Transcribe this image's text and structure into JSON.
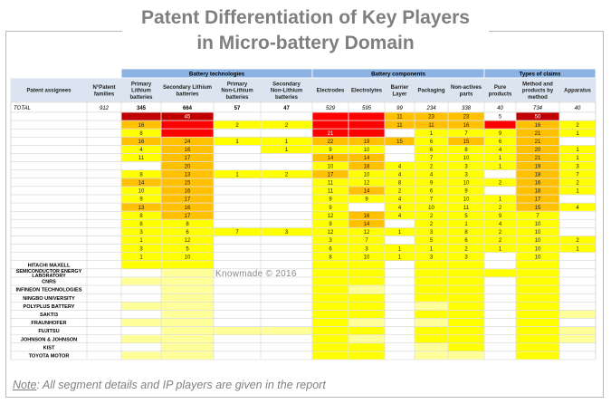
{
  "page": {
    "title_line1": "Patent Differentiation of Key Players",
    "title_line2": "in Micro-battery Domain",
    "watermark": "Knowmade  © 2016",
    "note_label": "Note",
    "note_text": ": All segment details and IP players are given in the report"
  },
  "colors": {
    "header_group": "#8db3e2",
    "header_col": "#dbe5f1",
    "darkred": "#c00000",
    "red": "#ff0000",
    "orange": "#ffc000",
    "yellow": "#ffff00",
    "lightyellow": "#ffff99",
    "grid": "#c9c9c9"
  },
  "chart_data": {
    "type": "heatmap",
    "groups": [
      {
        "label": "Battery technologies",
        "start": 2,
        "end": 5
      },
      {
        "label": "Battery components",
        "start": 6,
        "end": 10
      },
      {
        "label": "Types of claims",
        "start": 11,
        "end": 13
      }
    ],
    "columns": [
      "Patent assignees",
      "N°Patent families",
      "Primary Lithium batteries",
      "Secondary Lithium batteries",
      "Primary Non-Lithium batteries",
      "Secondary Non-Lithium batteries",
      "Electrodes",
      "Electrolytes",
      "Barrier Layer",
      "Packaging",
      "Non-actives parts",
      "Pure products",
      "Method and products by method",
      "Apparatus"
    ],
    "total": {
      "label": "TOTAL",
      "values": [
        "912",
        "345",
        "664",
        "57",
        "47",
        "529",
        "595",
        "99",
        "234",
        "338",
        "40",
        "734",
        "40"
      ]
    },
    "rows": [
      {
        "name": "",
        "values": [
          "",
          "",
          "45",
          "",
          "",
          "",
          "",
          "11",
          "23",
          "23",
          "5",
          "50",
          ""
        ],
        "levels": [
          "",
          "darkred",
          "darkred",
          "",
          "",
          "red",
          "red",
          "orange",
          "orange",
          "orange",
          "",
          "darkred",
          ""
        ]
      },
      {
        "name": "",
        "values": [
          "",
          "16",
          "",
          "2",
          "2",
          "",
          "",
          "11",
          "11",
          "16",
          "",
          "16",
          "2"
        ],
        "levels": [
          "",
          "orange",
          "red",
          "yellow",
          "yellow",
          "red",
          "red",
          "orange",
          "orange",
          "orange",
          "red",
          "orange",
          "yellow"
        ]
      },
      {
        "name": "",
        "values": [
          "",
          "8",
          "",
          "",
          "",
          "21",
          "",
          "",
          "1",
          "7",
          "9",
          "21",
          "1"
        ],
        "levels": [
          "",
          "yellow",
          "red",
          "",
          "",
          "red",
          "red",
          "",
          "yellow",
          "yellow",
          "yellow",
          "orange",
          "yellow"
        ]
      },
      {
        "name": "",
        "values": [
          "",
          "16",
          "24",
          "1",
          "1",
          "22",
          "19",
          "15",
          "6",
          "15",
          "6",
          "21",
          ""
        ],
        "levels": [
          "",
          "orange",
          "orange",
          "yellow",
          "yellow",
          "orange",
          "orange",
          "orange",
          "yellow",
          "orange",
          "yellow",
          "orange",
          ""
        ]
      },
      {
        "name": "",
        "values": [
          "",
          "4",
          "16",
          "",
          "1",
          "9",
          "10",
          "",
          "6",
          "8",
          "4",
          "20",
          "1"
        ],
        "levels": [
          "",
          "yellow",
          "orange",
          "",
          "yellow",
          "yellow",
          "yellow",
          "",
          "yellow",
          "yellow",
          "yellow",
          "orange",
          "yellow"
        ]
      },
      {
        "name": "",
        "values": [
          "",
          "11",
          "17",
          "",
          "",
          "14",
          "14",
          "",
          "7",
          "10",
          "1",
          "21",
          "1"
        ],
        "levels": [
          "",
          "yellow",
          "orange",
          "",
          "",
          "orange",
          "orange",
          "",
          "yellow",
          "yellow",
          "yellow",
          "orange",
          "yellow"
        ]
      },
      {
        "name": "",
        "values": [
          "",
          "",
          "20",
          "",
          "",
          "10",
          "18",
          "4",
          "2",
          "3",
          "1",
          "19",
          "3"
        ],
        "levels": [
          "",
          "",
          "orange",
          "",
          "",
          "yellow",
          "orange",
          "yellow",
          "yellow",
          "yellow",
          "yellow",
          "orange",
          "yellow"
        ]
      },
      {
        "name": "",
        "values": [
          "",
          "8",
          "13",
          "1",
          "2",
          "17",
          "10",
          "4",
          "4",
          "3",
          "",
          "18",
          "7"
        ],
        "levels": [
          "",
          "yellow",
          "orange",
          "yellow",
          "yellow",
          "orange",
          "yellow",
          "yellow",
          "yellow",
          "yellow",
          "",
          "orange",
          "yellow"
        ]
      },
      {
        "name": "",
        "values": [
          "",
          "14",
          "15",
          "",
          "",
          "11",
          "12",
          "8",
          "9",
          "10",
          "2",
          "16",
          "2"
        ],
        "levels": [
          "",
          "orange",
          "orange",
          "",
          "",
          "yellow",
          "yellow",
          "yellow",
          "yellow",
          "yellow",
          "yellow",
          "orange",
          "yellow"
        ]
      },
      {
        "name": "",
        "values": [
          "",
          "10",
          "16",
          "",
          "",
          "11",
          "14",
          "2",
          "6",
          "9",
          "",
          "18",
          "1"
        ],
        "levels": [
          "",
          "yellow",
          "orange",
          "",
          "",
          "yellow",
          "orange",
          "yellow",
          "yellow",
          "yellow",
          "",
          "orange",
          "yellow"
        ]
      },
      {
        "name": "",
        "values": [
          "",
          "9",
          "17",
          "",
          "",
          "9",
          "9",
          "4",
          "7",
          "10",
          "1",
          "17",
          ""
        ],
        "levels": [
          "",
          "yellow",
          "orange",
          "",
          "",
          "yellow",
          "yellow",
          "yellow",
          "yellow",
          "yellow",
          "yellow",
          "orange",
          ""
        ]
      },
      {
        "name": "",
        "values": [
          "",
          "13",
          "16",
          "",
          "",
          "9",
          "",
          "4",
          "10",
          "11",
          "2",
          "15",
          "4"
        ],
        "levels": [
          "",
          "orange",
          "orange",
          "",
          "",
          "yellow",
          "",
          "yellow",
          "yellow",
          "yellow",
          "yellow",
          "orange",
          "yellow"
        ]
      },
      {
        "name": "",
        "values": [
          "",
          "8",
          "17",
          "",
          "",
          "12",
          "16",
          "4",
          "2",
          "5",
          "9",
          "7",
          ""
        ],
        "levels": [
          "",
          "yellow",
          "orange",
          "",
          "",
          "yellow",
          "orange",
          "yellow",
          "yellow",
          "yellow",
          "yellow",
          "yellow",
          ""
        ]
      },
      {
        "name": "",
        "values": [
          "",
          "8",
          "8",
          "",
          "",
          "9",
          "14",
          "",
          "2",
          "1",
          "4",
          "10",
          ""
        ],
        "levels": [
          "",
          "yellow",
          "yellow",
          "",
          "",
          "yellow",
          "orange",
          "",
          "yellow",
          "yellow",
          "yellow",
          "yellow",
          ""
        ]
      },
      {
        "name": "",
        "values": [
          "",
          "3",
          "6",
          "7",
          "3",
          "12",
          "12",
          "1",
          "3",
          "8",
          "2",
          "10",
          ""
        ],
        "levels": [
          "",
          "yellow",
          "yellow",
          "yellow",
          "yellow",
          "yellow",
          "yellow",
          "yellow",
          "yellow",
          "yellow",
          "yellow",
          "yellow",
          ""
        ]
      },
      {
        "name": "",
        "values": [
          "",
          "1",
          "12",
          "",
          "",
          "3",
          "7",
          "",
          "5",
          "6",
          "2",
          "10",
          "2"
        ],
        "levels": [
          "",
          "yellow",
          "yellow",
          "",
          "",
          "yellow",
          "yellow",
          "",
          "yellow",
          "yellow",
          "yellow",
          "yellow",
          "yellow"
        ]
      },
      {
        "name": "",
        "values": [
          "",
          "3",
          "5",
          "",
          "",
          "6",
          "3",
          "1",
          "1",
          "2",
          "1",
          "10",
          "1"
        ],
        "levels": [
          "",
          "yellow",
          "yellow",
          "",
          "",
          "yellow",
          "yellow",
          "yellow",
          "yellow",
          "yellow",
          "yellow",
          "yellow",
          "yellow"
        ]
      },
      {
        "name": "",
        "values": [
          "",
          "1",
          "10",
          "",
          "",
          "8",
          "10",
          "1",
          "3",
          "3",
          "",
          "10",
          ""
        ],
        "levels": [
          "",
          "yellow",
          "yellow",
          "",
          "",
          "yellow",
          "yellow",
          "yellow",
          "yellow",
          "yellow",
          "",
          "yellow",
          ""
        ]
      },
      {
        "name": "HITACHI MAXELL",
        "values": [
          "",
          "",
          "",
          "",
          "",
          "",
          "",
          "",
          "",
          "",
          "",
          "",
          ""
        ],
        "levels": [
          "",
          "yellow",
          "yellow",
          "",
          "",
          "yellow",
          "yellow",
          "",
          "yellow",
          "yellow",
          "",
          "yellow",
          ""
        ]
      },
      {
        "name": "SEMICONDUCTOR ENERGY LABORATORY",
        "values": [
          "",
          "",
          "",
          "",
          "",
          "",
          "",
          "",
          "",
          "",
          "",
          "",
          ""
        ],
        "levels": [
          "",
          "",
          "lightyellow",
          "",
          "",
          "yellow",
          "yellow",
          "",
          "yellow",
          "yellow",
          "yellow",
          "yellow",
          ""
        ]
      },
      {
        "name": "CNRS",
        "values": [
          "",
          "",
          "",
          "",
          "",
          "",
          "",
          "",
          "",
          "",
          "",
          "",
          ""
        ],
        "levels": [
          "",
          "lightyellow",
          "lightyellow",
          "",
          "",
          "yellow",
          "yellow",
          "",
          "yellow",
          "yellow",
          "",
          "yellow",
          ""
        ]
      },
      {
        "name": "INFINEON TECHNOLOGIES",
        "values": [
          "",
          "",
          "",
          "",
          "",
          "",
          "",
          "",
          "",
          "",
          "",
          "",
          ""
        ],
        "levels": [
          "",
          "",
          "lightyellow",
          "",
          "",
          "yellow",
          "lightyellow",
          "",
          "yellow",
          "yellow",
          "",
          "yellow",
          ""
        ]
      },
      {
        "name": "NINGBO UNIVERSITY",
        "values": [
          "",
          "",
          "",
          "",
          "",
          "",
          "",
          "",
          "",
          "",
          "",
          "",
          ""
        ],
        "levels": [
          "",
          "",
          "lightyellow",
          "",
          "",
          "yellow",
          "yellow",
          "",
          "yellow",
          "yellow",
          "",
          "yellow",
          ""
        ]
      },
      {
        "name": "POLYPLUS BATTERY",
        "values": [
          "",
          "",
          "",
          "",
          "",
          "",
          "",
          "",
          "",
          "",
          "",
          "",
          ""
        ],
        "levels": [
          "",
          "lightyellow",
          "lightyellow",
          "",
          "",
          "yellow",
          "yellow",
          "",
          "lightyellow",
          "yellow",
          "",
          "yellow",
          ""
        ]
      },
      {
        "name": "SAKTI3",
        "values": [
          "",
          "",
          "",
          "",
          "",
          "",
          "",
          "",
          "",
          "",
          "",
          "",
          ""
        ],
        "levels": [
          "",
          "",
          "lightyellow",
          "",
          "",
          "yellow",
          "yellow",
          "",
          "yellow",
          "yellow",
          "",
          "yellow",
          "lightyellow"
        ]
      },
      {
        "name": "FRAUNHOFER",
        "values": [
          "",
          "",
          "",
          "",
          "",
          "",
          "",
          "",
          "",
          "",
          "",
          "",
          ""
        ],
        "levels": [
          "",
          "lightyellow",
          "lightyellow",
          "",
          "",
          "yellow",
          "lightyellow",
          "",
          "lightyellow",
          "yellow",
          "",
          "yellow",
          ""
        ]
      },
      {
        "name": "FUJITSU",
        "values": [
          "",
          "",
          "",
          "",
          "",
          "",
          "",
          "",
          "",
          "",
          "",
          "",
          ""
        ],
        "levels": [
          "",
          "",
          "lightyellow",
          "lightyellow",
          "lightyellow",
          "yellow",
          "yellow",
          "",
          "yellow",
          "yellow",
          "",
          "yellow",
          "lightyellow"
        ]
      },
      {
        "name": "JOHNSON & JOHNSON",
        "values": [
          "",
          "",
          "",
          "",
          "",
          "",
          "",
          "",
          "",
          "",
          "",
          "",
          ""
        ],
        "levels": [
          "",
          "lightyellow",
          "lightyellow",
          "",
          "",
          "yellow",
          "lightyellow",
          "",
          "yellow",
          "yellow",
          "",
          "yellow",
          "lightyellow"
        ]
      },
      {
        "name": "KIST",
        "values": [
          "",
          "",
          "",
          "",
          "",
          "",
          "",
          "",
          "",
          "",
          "",
          "",
          ""
        ],
        "levels": [
          "",
          "",
          "lightyellow",
          "",
          "",
          "yellow",
          "yellow",
          "",
          "lightyellow",
          "yellow",
          "",
          "yellow",
          ""
        ]
      },
      {
        "name": "TOYOTA MOTOR",
        "values": [
          "",
          "",
          "",
          "",
          "",
          "",
          "",
          "",
          "",
          "",
          "",
          "",
          ""
        ],
        "levels": [
          "",
          "lightyellow",
          "lightyellow",
          "",
          "",
          "yellow",
          "yellow",
          "",
          "lightyellow",
          "lightyellow",
          "",
          "yellow",
          ""
        ]
      }
    ]
  }
}
